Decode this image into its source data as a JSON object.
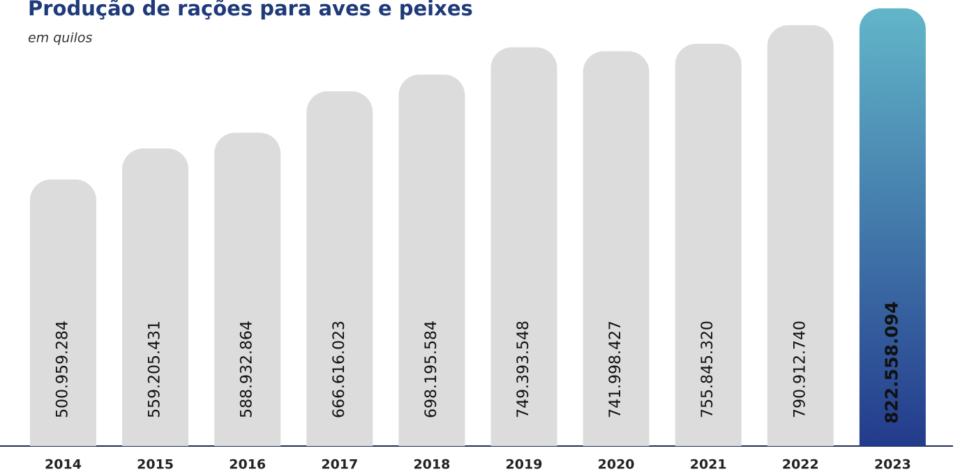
{
  "chart_data": {
    "type": "bar",
    "title": "Produção de rações para aves e peixes",
    "subtitle": "em quilos",
    "categories": [
      "2014",
      "2015",
      "2016",
      "2017",
      "2018",
      "2019",
      "2020",
      "2021",
      "2022",
      "2023"
    ],
    "values": [
      500959284,
      559205431,
      588932864,
      666616023,
      698195584,
      749393548,
      741998427,
      755845320,
      790912740,
      822558094
    ],
    "value_labels": [
      "500.959.284",
      "559.205.431",
      "588.932.864",
      "666.616.023",
      "698.195.584",
      "749.393.548",
      "741.998.427",
      "755.845.320",
      "790.912.740",
      "822.558.094"
    ],
    "color": "#dcdcdc",
    "highlight": "2023",
    "highlight_color": [
      "#62b6c9",
      "#233b8c"
    ],
    "highlight_text_color": "#2a3f8f"
  }
}
